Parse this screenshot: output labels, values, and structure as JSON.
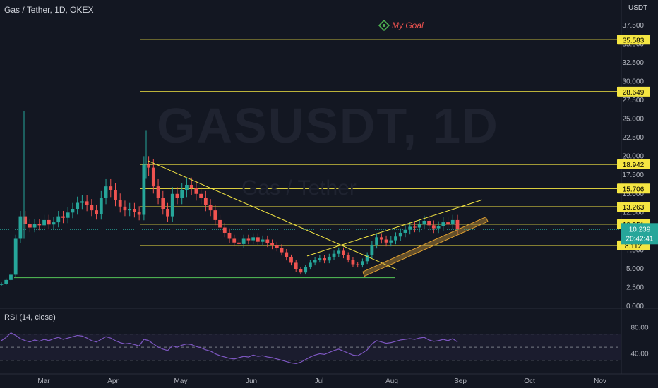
{
  "header": {
    "title": "Gas / Tether, 1D, OKEX"
  },
  "watermark": {
    "symbol": "GASUSDT, 1D",
    "subtitle": "Gas / Tether"
  },
  "annotation": {
    "goal_label": "My Goal"
  },
  "price_axis": {
    "currency": "USDT",
    "ticks": [
      "37.500",
      "35.000",
      "32.500",
      "30.000",
      "27.500",
      "25.000",
      "22.500",
      "20.000",
      "17.500",
      "15.000",
      "12.500",
      "10.000",
      "7.500",
      "5.000",
      "2.500",
      "0.000"
    ],
    "tick_values": [
      37.5,
      35,
      32.5,
      30,
      27.5,
      25,
      22.5,
      20,
      17.5,
      15,
      12.5,
      10,
      7.5,
      5,
      2.5,
      0
    ]
  },
  "levels": [
    {
      "label": "35.583",
      "value": 35.583
    },
    {
      "label": "28.649",
      "value": 28.649
    },
    {
      "label": "18.942",
      "value": 18.942
    },
    {
      "label": "15.706",
      "value": 15.706
    },
    {
      "label": "13.263",
      "value": 13.263
    },
    {
      "label": "10.951",
      "value": 10.951
    },
    {
      "label": "8.112",
      "value": 8.112
    }
  ],
  "current_price": {
    "value_label": "10.239",
    "value": 10.239,
    "countdown": "20:42:41"
  },
  "rsi": {
    "title": "RSI (14, close)",
    "ticks": [
      "80.00",
      "40.00"
    ],
    "tick_values": [
      80,
      40
    ],
    "upper_band": 70,
    "lower_band": 30
  },
  "time_axis": {
    "labels": [
      "Mar",
      "Apr",
      "May",
      "Jun",
      "Jul",
      "Aug",
      "Sep",
      "Oct",
      "Nov"
    ]
  },
  "colors": {
    "up": "#26a69a",
    "down": "#ef5350",
    "level": "#f5e642",
    "support": "#4caf50",
    "rsi_line": "#7e57c2",
    "bg": "#131722"
  },
  "chart_data": {
    "type": "candlestick",
    "title": "Gas / Tether, 1D, OKEX",
    "ylabel": "USDT",
    "ylim": [
      0,
      39
    ],
    "x": [
      "Mar",
      "Apr",
      "May",
      "Jun",
      "Jul",
      "Aug",
      "Sep",
      "Oct",
      "Nov"
    ],
    "close_series_approx": [
      3.0,
      3.5,
      4.2,
      9.0,
      12,
      11,
      10.5,
      11,
      10.8,
      11.5,
      10.9,
      11.2,
      12,
      11.8,
      12.5,
      13,
      13.8,
      14,
      13.5,
      12.8,
      12.3,
      14.5,
      16,
      15.5,
      14.2,
      13.3,
      12.8,
      13,
      12.6,
      12.2,
      18.9,
      18.5,
      16,
      14.5,
      13,
      12,
      15,
      14.5,
      15.5,
      16.2,
      15.8,
      15,
      14.5,
      13.5,
      12.8,
      11.5,
      10.5,
      9.8,
      9,
      8.5,
      8.3,
      9,
      8.8,
      9.2,
      8.6,
      8.9,
      8.4,
      8.1,
      7.8,
      7.2,
      6.5,
      5.8,
      4.9,
      4.5,
      5.2,
      5.8,
      6.2,
      6.4,
      6.1,
      6.6,
      7.0,
      7.4,
      6.8,
      6.2,
      5.6,
      5.5,
      6.0,
      6.8,
      8.2,
      9.2,
      8.9,
      8.5,
      8.8,
      9.3,
      9.8,
      10.2,
      10.6,
      10.5,
      10.9,
      11.4,
      10.8,
      10.4,
      10.7,
      11.2,
      10.9,
      11.5,
      10.239
    ],
    "levels": [
      35.583,
      28.649,
      18.942,
      15.706,
      13.263,
      10.951,
      8.112
    ],
    "support_level": 3.85,
    "rsi_series_approx": [
      60,
      65,
      72,
      68,
      63,
      60,
      58,
      61,
      59,
      62,
      60,
      63,
      65,
      62,
      64,
      66,
      68,
      67,
      64,
      60,
      58,
      62,
      66,
      64,
      60,
      57,
      55,
      56,
      54,
      52,
      62,
      60,
      55,
      50,
      47,
      45,
      52,
      50,
      53,
      55,
      54,
      51,
      49,
      46,
      44,
      40,
      37,
      35,
      33,
      32,
      34,
      36,
      35,
      38,
      36,
      37,
      35,
      34,
      32,
      30,
      28,
      26,
      25,
      27,
      31,
      35,
      38,
      40,
      39,
      42,
      45,
      47,
      44,
      41,
      38,
      37,
      41,
      46,
      55,
      60,
      58,
      56,
      57,
      59,
      61,
      62,
      63,
      62,
      64,
      65,
      61,
      59,
      60,
      62,
      60,
      63,
      58
    ],
    "rsi_range": [
      20,
      90
    ]
  }
}
